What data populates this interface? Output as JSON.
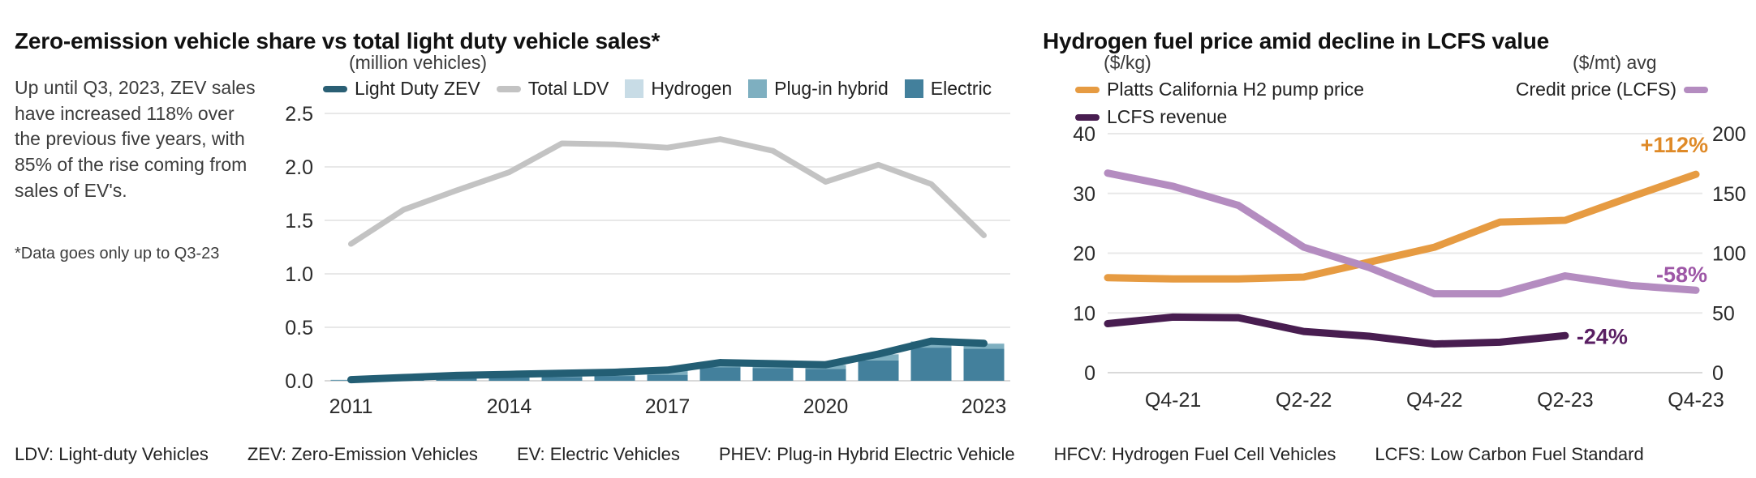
{
  "left_panel": {
    "title": "Zero-emission vehicle share vs total light duty vehicle sales*",
    "annotation": "Up until Q3, 2023, ZEV sales have increased 118% over the previous five years, with 85% of the rise coming from sales of EV's.",
    "footnote": "*Data goes only up to Q3-23",
    "axis_unit": "(million vehicles)",
    "legend": [
      {
        "label": "Light Duty ZEV",
        "type": "line",
        "color": "#2a5f74"
      },
      {
        "label": "Total LDV",
        "type": "line",
        "color": "#c3c3c3"
      },
      {
        "label": "Hydrogen",
        "type": "square",
        "color": "#c8dce6"
      },
      {
        "label": "Plug-in hybrid",
        "type": "square",
        "color": "#7eafc0"
      },
      {
        "label": "Electric",
        "type": "square",
        "color": "#43809c"
      }
    ]
  },
  "right_panel": {
    "title": "Hydrogen fuel price amid decline in LCFS value",
    "left_axis_unit": "($/kg)",
    "right_axis_unit": "($/mt) avg",
    "legend": [
      {
        "label": "Platts California H2 pump price",
        "color": "#e69b42"
      },
      {
        "label": "LCFS revenue",
        "color": "#481d50"
      },
      {
        "label": "Credit price (LCFS)",
        "color": "#b48cc0"
      }
    ]
  },
  "footer": {
    "items": [
      "LDV: Light-duty Vehicles",
      "ZEV: Zero-Emission Vehicles",
      "EV: Electric Vehicles",
      "PHEV: Plug-in Hybrid Electric Vehicle",
      "HFCV: Hydrogen Fuel Cell Vehicles",
      "LCFS: Low Carbon Fuel Standard"
    ]
  },
  "chart_data": [
    {
      "type": "combo-line-stacked-bar",
      "title": "Zero-emission vehicle share vs total light duty vehicle sales*",
      "ylabel": "(million vehicles)",
      "ylim": [
        0,
        2.5
      ],
      "yticks": [
        0.0,
        0.5,
        1.0,
        1.5,
        2.0,
        2.5
      ],
      "categories": [
        "2011",
        "2012",
        "2013",
        "2014",
        "2015",
        "2016",
        "2017",
        "2018",
        "2019",
        "2020",
        "2021",
        "2022",
        "2023"
      ],
      "xticks": [
        "2011",
        "2014",
        "2017",
        "2020",
        "2023"
      ],
      "grid": true,
      "line_series": [
        {
          "name": "Total LDV",
          "color": "#c3c3c3",
          "width": 7,
          "values": [
            1.28,
            1.6,
            1.78,
            1.95,
            2.22,
            2.21,
            2.18,
            2.26,
            2.15,
            1.86,
            2.02,
            1.84,
            1.36
          ]
        },
        {
          "name": "Light Duty ZEV",
          "color": "#235e74",
          "width": 9,
          "values": [
            0.01,
            0.03,
            0.05,
            0.06,
            0.07,
            0.08,
            0.1,
            0.17,
            0.16,
            0.15,
            0.25,
            0.37,
            0.35
          ]
        }
      ],
      "bar_series_stacked_bottom_to_top": [
        {
          "name": "Electric",
          "color": "#43809c",
          "values": [
            0.005,
            0.015,
            0.024,
            0.03,
            0.036,
            0.045,
            0.056,
            0.125,
            0.12,
            0.112,
            0.19,
            0.31,
            0.3
          ]
        },
        {
          "name": "Plug-in hybrid",
          "color": "#7eafc0",
          "values": [
            0.004,
            0.014,
            0.025,
            0.028,
            0.03,
            0.033,
            0.042,
            0.043,
            0.038,
            0.036,
            0.057,
            0.057,
            0.047
          ]
        },
        {
          "name": "Hydrogen",
          "color": "#c8dce6",
          "values": [
            0.001,
            0.001,
            0.001,
            0.002,
            0.004,
            0.002,
            0.002,
            0.002,
            0.002,
            0.002,
            0.003,
            0.003,
            0.003
          ]
        }
      ]
    },
    {
      "type": "line",
      "title": "Hydrogen fuel price amid decline in LCFS value",
      "x": [
        "Q3-21",
        "Q4-21",
        "Q1-22",
        "Q2-22",
        "Q3-22",
        "Q4-22",
        "Q1-23",
        "Q2-23",
        "Q3-23",
        "Q4-23"
      ],
      "xticks": [
        "Q4-21",
        "Q2-22",
        "Q4-22",
        "Q2-23",
        "Q4-23"
      ],
      "left_axis": {
        "label": "($/kg)",
        "lim": [
          0,
          40
        ],
        "ticks": [
          0,
          10,
          20,
          30,
          40
        ]
      },
      "right_axis": {
        "label": "($/mt) avg",
        "lim": [
          0,
          200
        ],
        "ticks": [
          0,
          50,
          100,
          150,
          200
        ]
      },
      "grid": true,
      "series": [
        {
          "name": "Platts California H2 pump price",
          "axis": "left",
          "color": "#e69b42",
          "values": [
            15.9,
            15.7,
            15.7,
            16.0,
            18.5,
            21.0,
            25.2,
            25.5,
            29.4,
            33.2
          ],
          "annotation": {
            "text": "+112%",
            "color": "#df8a28"
          }
        },
        {
          "name": "LCFS revenue",
          "axis": "left",
          "color": "#481d50",
          "values": [
            8.2,
            9.3,
            9.2,
            6.9,
            6.1,
            4.8,
            5.1,
            6.2
          ],
          "annotation": {
            "text": "-24%",
            "color": "#5a1f63"
          }
        },
        {
          "name": "Credit price (LCFS)",
          "axis": "right",
          "color": "#b48cc0",
          "values": [
            167,
            156,
            140,
            105,
            88,
            66,
            66,
            81,
            73,
            69
          ],
          "annotation": {
            "text": "-58%",
            "color": "#9d56a6"
          }
        }
      ]
    }
  ]
}
